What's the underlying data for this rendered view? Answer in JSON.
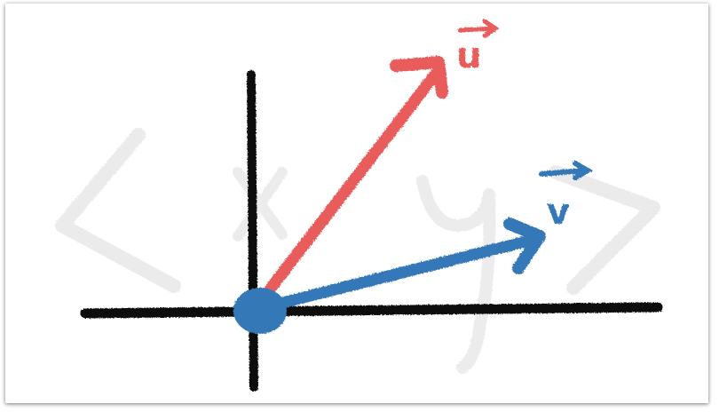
{
  "diagram": {
    "vectors": [
      {
        "id": "u",
        "label": "u",
        "color": "#e85c5c"
      },
      {
        "id": "v",
        "label": "v",
        "color": "#3478b8"
      }
    ],
    "origin_color": "#3478b8",
    "axis_color": "#111111",
    "background_mark_color": "#ebebeb",
    "background_marks": [
      "<",
      "x",
      "y",
      ">"
    ]
  }
}
